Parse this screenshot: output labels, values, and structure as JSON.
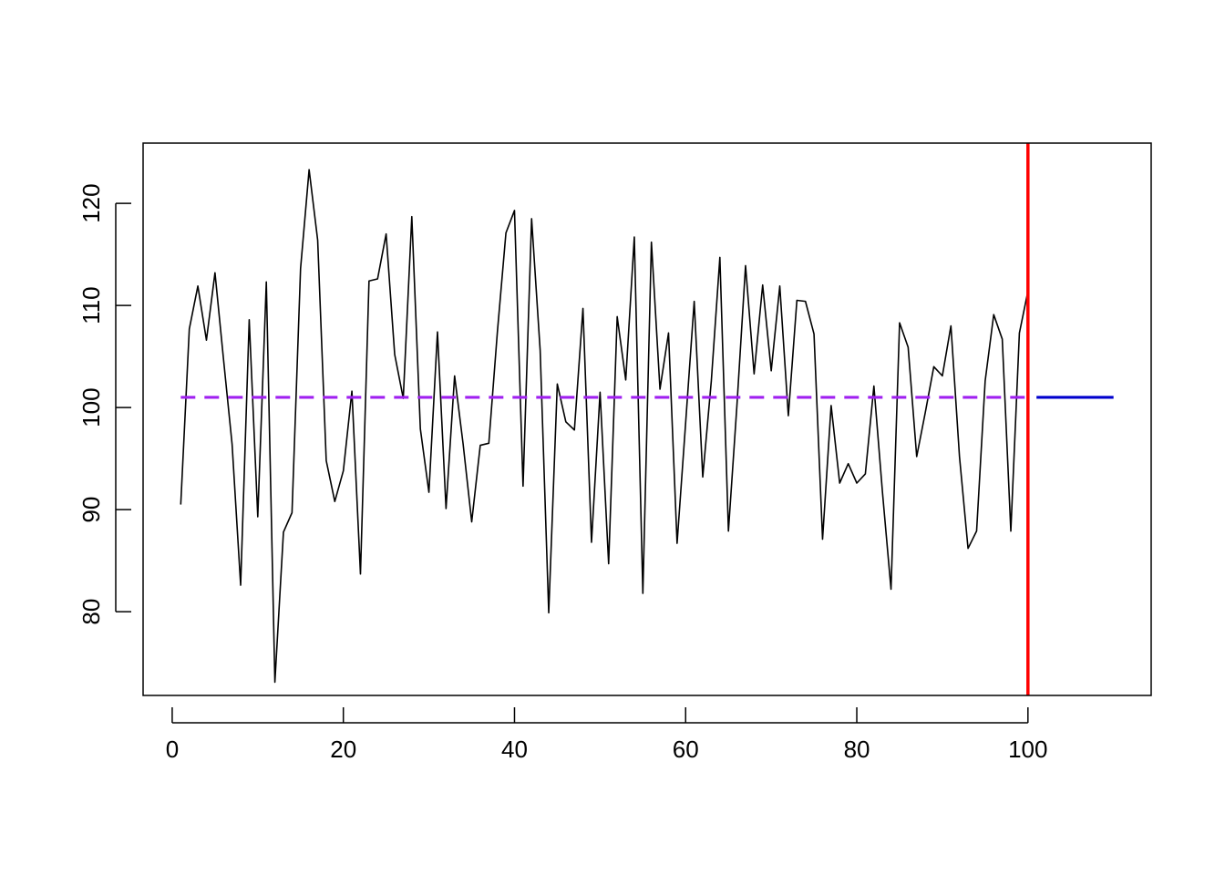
{
  "chart_data": {
    "type": "line",
    "title": "",
    "xlabel": "",
    "ylabel": "",
    "xlim": [
      -3.4,
      114.4
    ],
    "ylim": [
      71.8,
      125.9
    ],
    "xticks": [
      0,
      20,
      40,
      60,
      80,
      100
    ],
    "yticks": [
      80,
      90,
      100,
      110,
      120
    ],
    "grid": false,
    "legend": "none",
    "series": [
      {
        "color": "#000000",
        "style": "solid",
        "x": [
          1,
          2,
          3,
          4,
          5,
          6,
          7,
          8,
          9,
          10,
          11,
          12,
          13,
          14,
          15,
          16,
          17,
          18,
          19,
          20,
          21,
          22,
          23,
          24,
          25,
          26,
          27,
          28,
          29,
          30,
          31,
          32,
          33,
          34,
          35,
          36,
          37,
          38,
          39,
          40,
          41,
          42,
          43,
          44,
          45,
          46,
          47,
          48,
          49,
          50,
          51,
          52,
          53,
          54,
          55,
          56,
          57,
          58,
          59,
          60,
          61,
          62,
          63,
          64,
          65,
          66,
          67,
          68,
          69,
          70,
          71,
          72,
          73,
          74,
          75,
          76,
          77,
          78,
          79,
          80,
          81,
          82,
          83,
          84,
          85,
          86,
          87,
          88,
          89,
          90,
          91,
          92,
          93,
          94,
          95,
          96,
          97,
          98,
          99,
          100
        ],
        "values": [
          90.5,
          107.7,
          111.9,
          106.6,
          113.2,
          104.7,
          96.4,
          82.6,
          108.6,
          89.3,
          112.3,
          73.1,
          87.8,
          89.7,
          113.6,
          123.3,
          116.4,
          94.8,
          90.8,
          93.8,
          101.6,
          83.7,
          112.4,
          112.6,
          117.0,
          105.2,
          100.9,
          118.7,
          97.9,
          91.7,
          107.4,
          90.1,
          103.1,
          96.4,
          88.8,
          96.3,
          96.5,
          107.4,
          117.1,
          119.3,
          92.3,
          118.5,
          105.6,
          79.9,
          102.3,
          98.6,
          97.8,
          109.7,
          86.8,
          101.5,
          84.7,
          108.9,
          102.7,
          116.7,
          81.8,
          116.2,
          101.8,
          107.3,
          86.7,
          98.5,
          110.4,
          93.2,
          102.6,
          114.7,
          87.9,
          100.3,
          113.9,
          103.3,
          112.0,
          103.6,
          111.9,
          99.2,
          110.5,
          110.4,
          107.2,
          87.1,
          100.2,
          92.6,
          94.5,
          92.6,
          93.5,
          102.1,
          91.7,
          82.2,
          108.3,
          105.9,
          95.2,
          99.5,
          104.0,
          103.1,
          108.0,
          95.2,
          86.2,
          87.9,
          102.6,
          109.1,
          106.7,
          87.9,
          107.3,
          111.4
        ]
      },
      {
        "color": "#a020f0",
        "style": "dashed",
        "x": [
          1,
          100
        ],
        "values": [
          101.0,
          101.0
        ]
      },
      {
        "color": "#0000cd",
        "style": "solid",
        "x": [
          101,
          110
        ],
        "values": [
          101.0,
          101.0
        ]
      }
    ],
    "annotations": [
      {
        "kind": "vline",
        "x": 100,
        "color": "#ff0000"
      }
    ]
  }
}
